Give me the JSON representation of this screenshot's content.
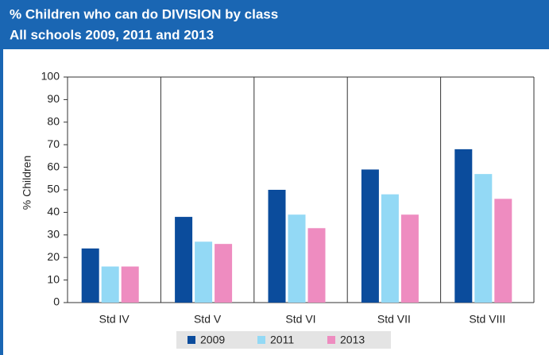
{
  "chart_data": {
    "type": "bar",
    "title": "% Children who can do DIVISION by class",
    "subtitle": "All schools 2009, 2011 and 2013",
    "y_label": "% Children",
    "categories": [
      "Std IV",
      "Std V",
      "Std VI",
      "Std VII",
      "Std VIII"
    ],
    "series": [
      {
        "name": "2009",
        "color": "#0b4c9c",
        "values": [
          24,
          38,
          50,
          59,
          68
        ]
      },
      {
        "name": "2011",
        "color": "#93d9f5",
        "values": [
          16,
          27,
          39,
          48,
          57
        ]
      },
      {
        "name": "2013",
        "color": "#ee8cc0",
        "values": [
          16,
          26,
          33,
          39,
          46
        ]
      }
    ],
    "ylim": [
      0,
      100
    ],
    "yticks": [
      0,
      10,
      20,
      30,
      40,
      50,
      60,
      70,
      80,
      90,
      100
    ]
  }
}
